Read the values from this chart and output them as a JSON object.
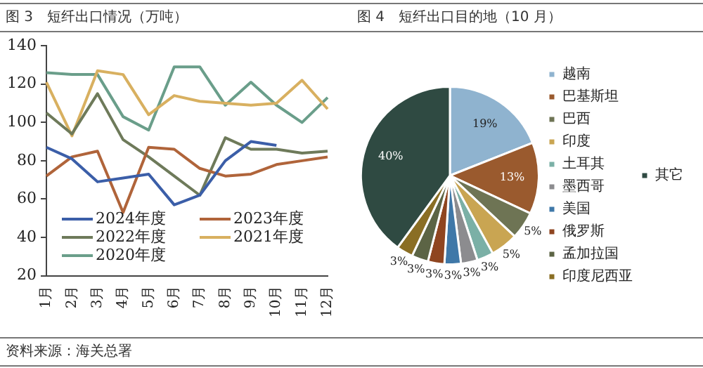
{
  "chart_data": [
    {
      "type": "line",
      "title": "图 3　短纤出口情况（万吨）",
      "categories": [
        "1月",
        "2月",
        "3月",
        "4月",
        "5月",
        "6月",
        "7月",
        "8月",
        "9月",
        "10月",
        "11月",
        "12月"
      ],
      "series": [
        {
          "name": "2024年度",
          "color": "#3b5ea8",
          "values": [
            87,
            81,
            69,
            71,
            73,
            57,
            62,
            80,
            90,
            88,
            null,
            null
          ]
        },
        {
          "name": "2023年度",
          "color": "#b0643a",
          "values": [
            72,
            82,
            85,
            53,
            87,
            86,
            76,
            72,
            73,
            78,
            80,
            82
          ]
        },
        {
          "name": "2022年度",
          "color": "#6e7a5a",
          "values": [
            105,
            94,
            115,
            91,
            82,
            72,
            62,
            92,
            86,
            86,
            84,
            85
          ]
        },
        {
          "name": "2021年度",
          "color": "#d8b060",
          "values": [
            121,
            93,
            127,
            125,
            104,
            114,
            111,
            110,
            109,
            110,
            122,
            107
          ]
        },
        {
          "name": "2020年度",
          "color": "#6a9e8a",
          "values": [
            126,
            125,
            125,
            103,
            96,
            129,
            129,
            109,
            121,
            109,
            100,
            113
          ]
        }
      ],
      "ylim": [
        20,
        140
      ],
      "yticks": [
        20,
        40,
        60,
        80,
        100,
        120,
        140
      ],
      "grid": false,
      "legend": "bottom left",
      "marker": "none",
      "annotations": [
        "资料来源：海关总署"
      ]
    },
    {
      "type": "pie",
      "title": "图 4　短纤出口目的地（10 月）",
      "categories": [
        "越南",
        "巴基斯坦",
        "巴西",
        "印度",
        "土耳其",
        "墨西哥",
        "美国",
        "俄罗斯",
        "孟加拉国",
        "印度尼西亚",
        "其它"
      ],
      "values": [
        19,
        13,
        5,
        5,
        3,
        3,
        3,
        3,
        3,
        3,
        40
      ],
      "colors": [
        "#8fb3cf",
        "#9a5a2e",
        "#6e7454",
        "#c9a552",
        "#7bb0a6",
        "#8c8c8f",
        "#3f78a8",
        "#8f4520",
        "#5c6445",
        "#8a6e24",
        "#2f4a42"
      ],
      "value_labels": [
        "19%",
        "13%",
        "5%",
        "5%",
        "3%",
        "3%",
        "3%",
        "3%",
        "3%",
        "3%",
        "40%"
      ],
      "legend": "right"
    }
  ]
}
